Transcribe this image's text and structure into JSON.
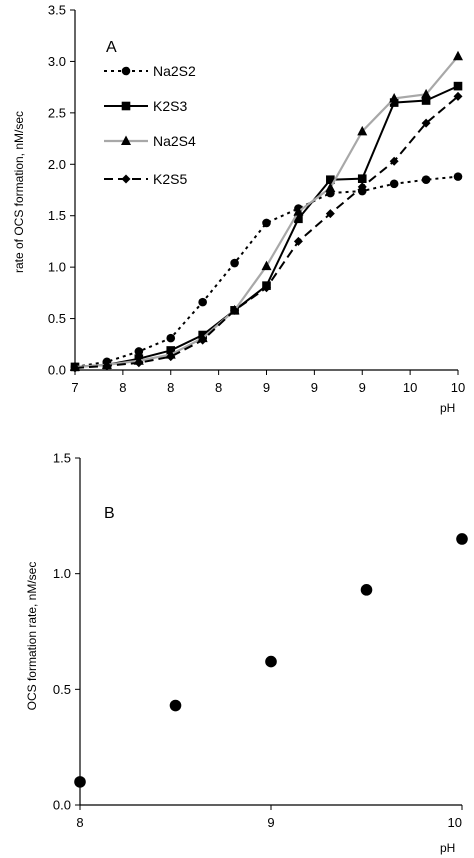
{
  "chart_data": [
    {
      "type": "line",
      "panel_label": "A",
      "xlabel": "pH",
      "ylabel": "rate of OCS formation, nM/sec",
      "x_tick_labels": [
        "7",
        "8",
        "8",
        "8",
        "9",
        "9",
        "9",
        "10",
        "10"
      ],
      "y_tick_labels": [
        "0.0",
        "0.5",
        "1.0",
        "1.5",
        "2.0",
        "2.5",
        "3.0",
        "3.5"
      ],
      "ylim": [
        0,
        3.5
      ],
      "xlim": [
        7,
        10
      ],
      "grid": false,
      "legend_position": "top-left",
      "series": [
        {
          "name": "Na2S2",
          "color": "#000000",
          "line_style": "dotted",
          "marker": "circle",
          "x": [
            7.0,
            7.25,
            7.5,
            7.75,
            8.0,
            8.25,
            8.5,
            8.75,
            9.0,
            9.25,
            9.5,
            9.75,
            10.0
          ],
          "values": [
            0.03,
            0.08,
            0.18,
            0.31,
            0.66,
            1.04,
            1.43,
            1.57,
            1.72,
            1.74,
            1.81,
            1.85,
            1.88
          ]
        },
        {
          "name": "K2S3",
          "color": "#000000",
          "line_style": "solid",
          "marker": "square",
          "x": [
            7.0,
            7.25,
            7.5,
            7.75,
            8.0,
            8.25,
            8.5,
            8.75,
            9.0,
            9.25,
            9.5,
            9.75,
            10.0
          ],
          "values": [
            0.03,
            0.05,
            0.11,
            0.19,
            0.34,
            0.58,
            0.82,
            1.47,
            1.85,
            1.86,
            2.6,
            2.62,
            2.76
          ]
        },
        {
          "name": "Na2S4",
          "color": "#a8a8a8",
          "line_style": "solid",
          "marker": "triangle",
          "x": [
            7.0,
            7.25,
            7.5,
            7.75,
            8.0,
            8.25,
            8.5,
            8.75,
            9.0,
            9.25,
            9.5,
            9.75,
            10.0
          ],
          "values": [
            0.03,
            0.05,
            0.09,
            0.15,
            0.31,
            0.58,
            1.01,
            1.54,
            1.77,
            2.32,
            2.64,
            2.68,
            3.05
          ]
        },
        {
          "name": "K2S5",
          "color": "#000000",
          "line_style": "dashed",
          "marker": "diamond",
          "x": [
            7.0,
            7.25,
            7.5,
            7.75,
            8.0,
            8.25,
            8.5,
            8.75,
            9.0,
            9.25,
            9.5,
            9.75,
            10.0
          ],
          "values": [
            0.02,
            0.04,
            0.07,
            0.13,
            0.29,
            0.58,
            0.8,
            1.25,
            1.52,
            1.78,
            2.03,
            2.4,
            2.66
          ]
        }
      ]
    },
    {
      "type": "scatter",
      "panel_label": "B",
      "xlabel": "pH",
      "ylabel": "OCS formation rate, nM/sec",
      "x_tick_labels": [
        "8",
        "9",
        "10"
      ],
      "y_tick_labels": [
        "0.0",
        "0.5",
        "1.0",
        "1.5"
      ],
      "xlim": [
        8,
        10
      ],
      "ylim": [
        0,
        1.5
      ],
      "grid": false,
      "series": [
        {
          "color": "#000000",
          "marker": "circle",
          "x": [
            8.0,
            8.5,
            9.0,
            9.5,
            10.0
          ],
          "values": [
            0.1,
            0.43,
            0.62,
            0.93,
            1.15
          ]
        }
      ]
    }
  ]
}
